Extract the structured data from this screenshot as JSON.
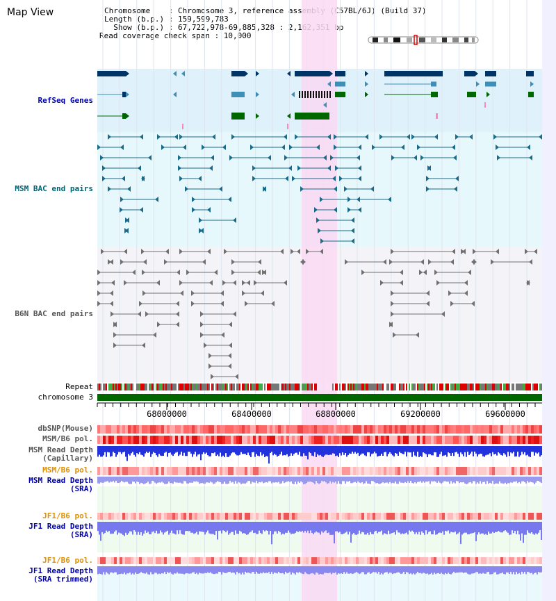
{
  "title": "Map View",
  "info": {
    "l1": "Chromosome    : Chromosome 3, reference assembly (C57BL/6J) (Build 37)",
    "l2": "Length (b.p.) : 159,599,783",
    "l3": "  Show (b.p.) : 67,722,978-69,885,328 : 2,162,351 bp",
    "l4": "Read coverage check span : 10,000"
  },
  "tracks": {
    "refseq": "RefSeq Genes",
    "msm_bac": "MSM BAC end pairs",
    "b6n_bac": "B6N BAC end pairs",
    "repeat": "Repeat",
    "chrom": "chromosome 3",
    "dbsnp": "dbSNP(Mouse)",
    "msm_b6_pol": "MSM/B6 pol.",
    "msm_depth_cap_1": "MSM Read Depth",
    "msm_depth_cap_2": "(Capillary)",
    "msm_b6_pol2": "MSM/B6 pol.",
    "msm_depth_sra_1": "MSM Read Depth",
    "msm_depth_sra_2": "(SRA)",
    "jf1_pol": "JF1/B6 pol.",
    "jf1_depth_1": "JF1 Read Depth",
    "jf1_depth_2": "(SRA)",
    "jf1_pol2": "JF1/B6 pol.",
    "jf1_trim_1": "JF1 Read Depth",
    "jf1_trim_2": "(SRA trimmed)"
  },
  "axis_ticks": [
    "68000000",
    "68400000",
    "68800000",
    "69200000",
    "69600000"
  ],
  "colors": {
    "refseq_bg": "#dff1fa",
    "msm_bg": "#e6f8fb",
    "b6n_bg": "#f4f4f8",
    "highlight": "#f9d9f3",
    "gene_dark": "#003366",
    "gene_mid": "#3d8fb8",
    "gene_green": "#006600",
    "bac_msm": "#1a6a8a",
    "bac_b6n": "#707070",
    "track_label_navy": "#0000aa",
    "track_label_teal": "#006677",
    "track_label_grey": "#555555",
    "track_label_orange": "#e09000"
  }
}
